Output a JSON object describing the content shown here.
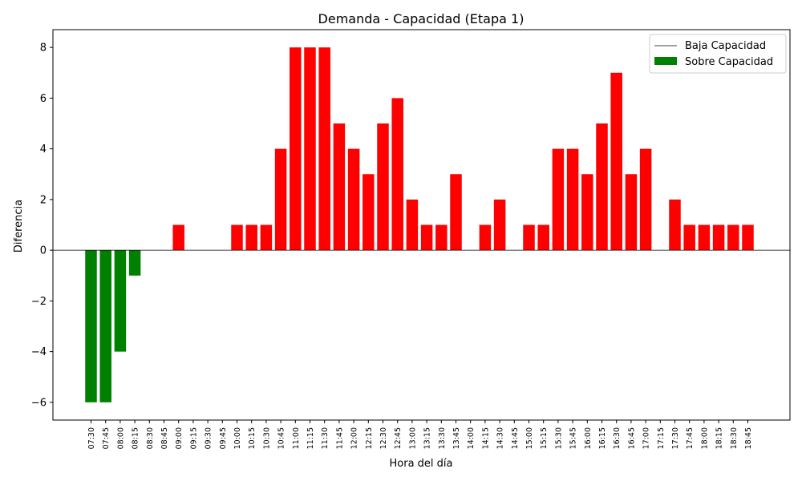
{
  "chart_data": {
    "type": "bar",
    "title": "Demanda - Capacidad (Etapa 1)",
    "xlabel": "Hora del día",
    "ylabel": "Diferencia",
    "ylim": [
      -6.7,
      8.7
    ],
    "yticks": [
      -6,
      -4,
      -2,
      0,
      2,
      4,
      6,
      8
    ],
    "ytick_labels": [
      "−6",
      "−4",
      "−2",
      "0",
      "2",
      "4",
      "6",
      "8"
    ],
    "grid": false,
    "legend_position": "top-right",
    "legend": [
      {
        "label": "Baja Capacidad",
        "kind": "line",
        "color": "#000000"
      },
      {
        "label": "Sobre Capacidad",
        "kind": "patch",
        "color": "#008000"
      }
    ],
    "colors": {
      "positive": "#ff0000",
      "negative": "#008000",
      "zero_line": "#000000"
    },
    "categories": [
      "07:30",
      "07:45",
      "08:00",
      "08:15",
      "08:30",
      "08:45",
      "09:00",
      "09:15",
      "09:30",
      "09:45",
      "10:00",
      "10:15",
      "10:30",
      "10:45",
      "11:00",
      "11:15",
      "11:30",
      "11:45",
      "12:00",
      "12:15",
      "12:30",
      "12:45",
      "13:00",
      "13:15",
      "13:30",
      "13:45",
      "14:00",
      "14:15",
      "14:30",
      "14:45",
      "15:00",
      "15:15",
      "15:30",
      "15:45",
      "16:00",
      "16:15",
      "16:30",
      "16:45",
      "17:00",
      "17:15",
      "17:30",
      "17:45",
      "18:00",
      "18:15",
      "18:30",
      "18:45"
    ],
    "values": [
      -6,
      -6,
      -4,
      -1,
      0,
      0,
      1,
      0,
      0,
      0,
      1,
      1,
      1,
      4,
      8,
      8,
      8,
      5,
      4,
      3,
      5,
      6,
      2,
      1,
      1,
      3,
      0,
      1,
      2,
      0,
      1,
      1,
      4,
      4,
      3,
      5,
      7,
      3,
      4,
      0,
      2,
      1,
      1,
      1,
      1,
      1
    ]
  }
}
